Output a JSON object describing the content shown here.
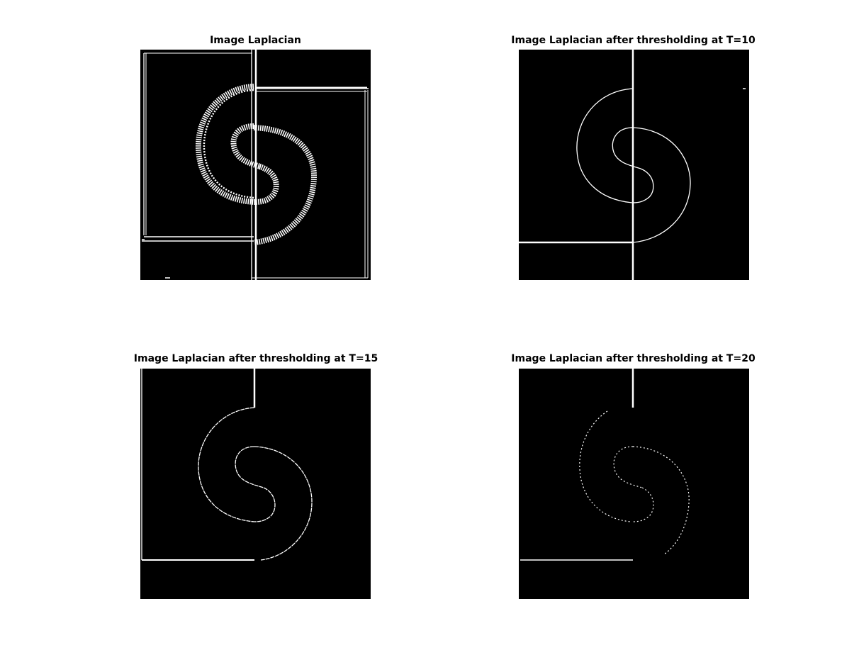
{
  "figure": {
    "background": "#ffffff",
    "image_background": "#000000",
    "edge_color": "#ffffff",
    "panels": [
      {
        "title": "Image Laplacian",
        "content": "noisy-edge-map"
      },
      {
        "title": "Image Laplacian after thresholding at T=10",
        "content": "thresholded-edge-map"
      },
      {
        "title": "Image Laplacian after thresholding at T=15",
        "content": "thresholded-edge-map"
      },
      {
        "title": "Image Laplacian after thresholding at T=20",
        "content": "thresholded-edge-map"
      }
    ]
  }
}
